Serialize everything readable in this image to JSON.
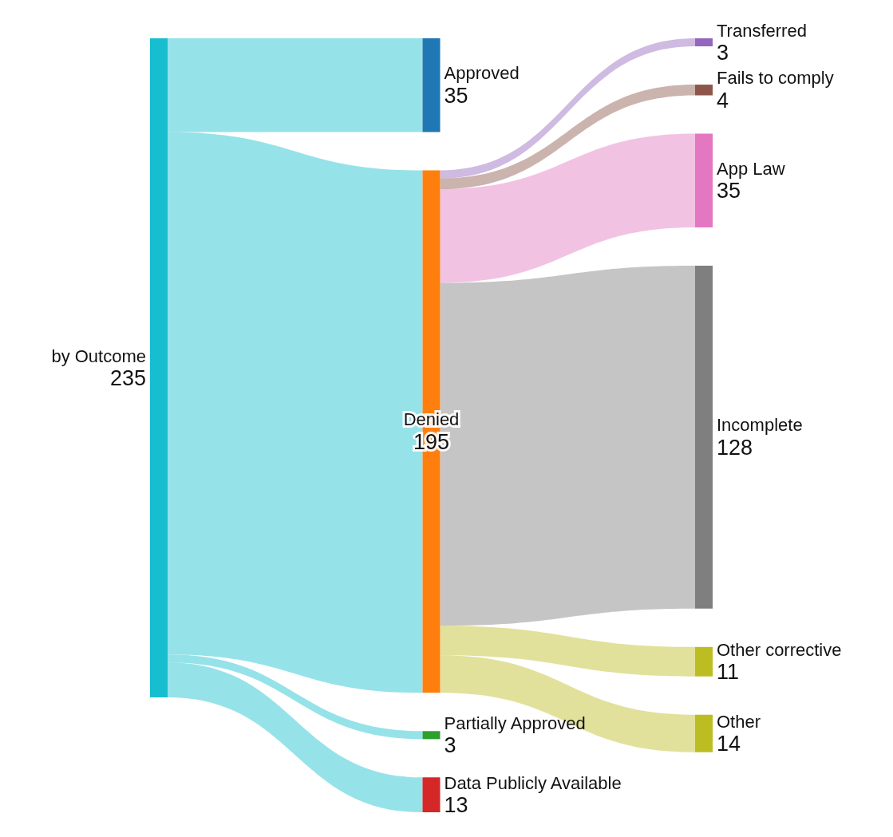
{
  "chart_data": {
    "type": "other",
    "data_labels": true,
    "categories": [
      "by Outcome",
      "Approved",
      "Denied",
      "Partially Approved",
      "Data Publicly Available",
      "Transferred",
      "Fails to comply",
      "App Law",
      "Incomplete",
      "Other corrective",
      "Other"
    ],
    "colors": [
      "#17becf",
      "#1f77b4",
      "#ff7f0e",
      "#2ca02c",
      "#d62728",
      "#9467bd",
      "#8c564b",
      "#e377c2",
      "#7f7f7f",
      "#bcbd22",
      "#bcbd22"
    ],
    "series": [
      {
        "values": [
          235,
          null,
          null,
          null,
          null,
          null,
          null,
          null,
          null,
          null,
          null
        ]
      },
      {
        "values": [
          null,
          35,
          195,
          3,
          13,
          null,
          null,
          null,
          null,
          null,
          null
        ]
      },
      {
        "values": [
          null,
          null,
          null,
          null,
          null,
          3,
          4,
          35,
          128,
          11,
          14
        ]
      }
    ]
  }
}
